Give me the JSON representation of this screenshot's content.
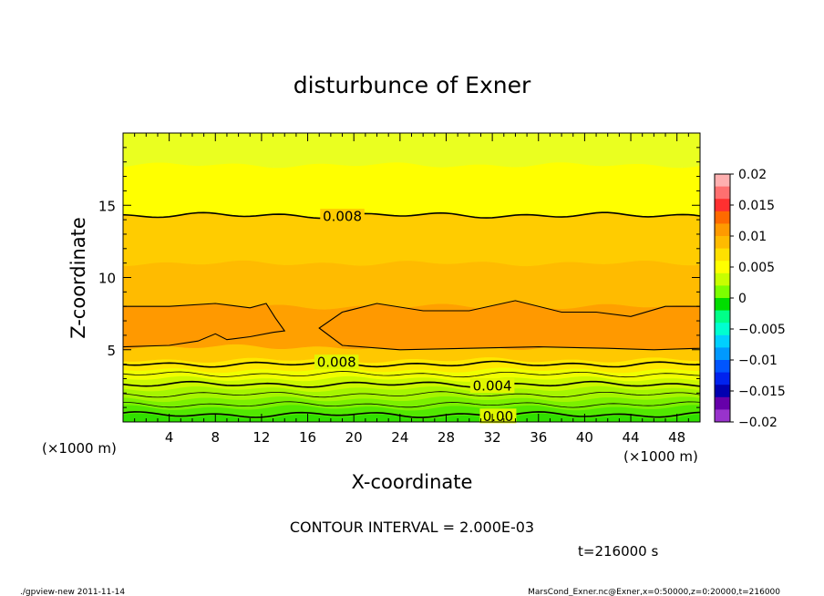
{
  "chart_data": {
    "type": "contour",
    "title": "disturbunce of Exner",
    "xlabel": "X-coordinate",
    "ylabel": "Z-coordinate",
    "x_unit": "(×1000 m)",
    "y_unit": "(×1000 m)",
    "xlim": [
      0,
      50
    ],
    "ylim": [
      0,
      20
    ],
    "x_ticks": [
      4,
      8,
      12,
      16,
      20,
      24,
      28,
      32,
      36,
      40,
      44,
      48
    ],
    "y_ticks": [
      5,
      10,
      15
    ],
    "colorbar": {
      "levels": [
        0.02,
        0.015,
        0.01,
        0.005,
        0,
        -0.005,
        -0.01,
        -0.015,
        -0.02
      ],
      "labels": [
        "0.02",
        "0.015",
        "0.01",
        "0.005",
        "0",
        "−0.005",
        "−0.01",
        "−0.015",
        "−0.02"
      ],
      "colors_top_to_bottom": [
        "#ffb0b0",
        "#ff7070",
        "#ff3030",
        "#ff6a00",
        "#ff9a00",
        "#ffbb00",
        "#ffe000",
        "#ffff00",
        "#c8ff00",
        "#7cff00",
        "#00dd00",
        "#00ff88",
        "#00ffd0",
        "#00d0ff",
        "#0099ff",
        "#0055ff",
        "#0022ee",
        "#0000b0",
        "#6600aa",
        "#9933cc"
      ]
    },
    "bands": [
      {
        "z_bottom": 0.0,
        "z_top": 0.4,
        "color": "#30e000"
      },
      {
        "z_bottom": 0.4,
        "z_top": 1.0,
        "color": "#52e800"
      },
      {
        "z_bottom": 1.0,
        "z_top": 1.6,
        "color": "#7cf000"
      },
      {
        "z_bottom": 1.6,
        "z_top": 2.3,
        "color": "#a6f500"
      },
      {
        "z_bottom": 2.3,
        "z_top": 3.0,
        "color": "#ccf800"
      },
      {
        "z_bottom": 3.0,
        "z_top": 3.6,
        "color": "#f0ff00"
      },
      {
        "z_bottom": 3.6,
        "z_top": 4.3,
        "color": "#ffe800"
      },
      {
        "z_bottom": 4.3,
        "z_top": 5.2,
        "color": "#ffc800"
      },
      {
        "z_bottom": 5.2,
        "z_top": 8.0,
        "color": "#ffa000"
      },
      {
        "z_bottom": 8.0,
        "z_top": 11.0,
        "color": "#ffbb00"
      },
      {
        "z_bottom": 11.0,
        "z_top": 14.3,
        "color": "#ffcc00"
      },
      {
        "z_bottom": 14.3,
        "z_top": 17.8,
        "color": "#ffff00"
      },
      {
        "z_bottom": 17.8,
        "z_top": 20.0,
        "color": "#eaff20"
      }
    ],
    "contours": [
      {
        "level": "0.00",
        "z": 0.5,
        "label": "0.00",
        "label_x": 32.5
      },
      {
        "level": "",
        "z": 1.2,
        "label": "",
        "label_x": null
      },
      {
        "level": "",
        "z": 1.9,
        "label": "",
        "label_x": null
      },
      {
        "level": "0.004",
        "z": 2.6,
        "label": "0.004",
        "label_x": 32
      },
      {
        "level": "",
        "z": 3.3,
        "label": "",
        "label_x": null
      },
      {
        "level": "0.008",
        "z": 4.0,
        "label": "0.008",
        "label_x": 18.5
      },
      {
        "level": "0.008",
        "z": 14.3,
        "label": "0.008",
        "label_x": 19
      }
    ],
    "interval_text": "CONTOUR INTERVAL = 2.000E-03",
    "time_text": "t=216000 s"
  },
  "footer": {
    "left": "./gpview-new  2011-11-14",
    "right": "MarsCond_Exner.nc@Exner,x=0:50000,z=0:20000,t=216000"
  }
}
